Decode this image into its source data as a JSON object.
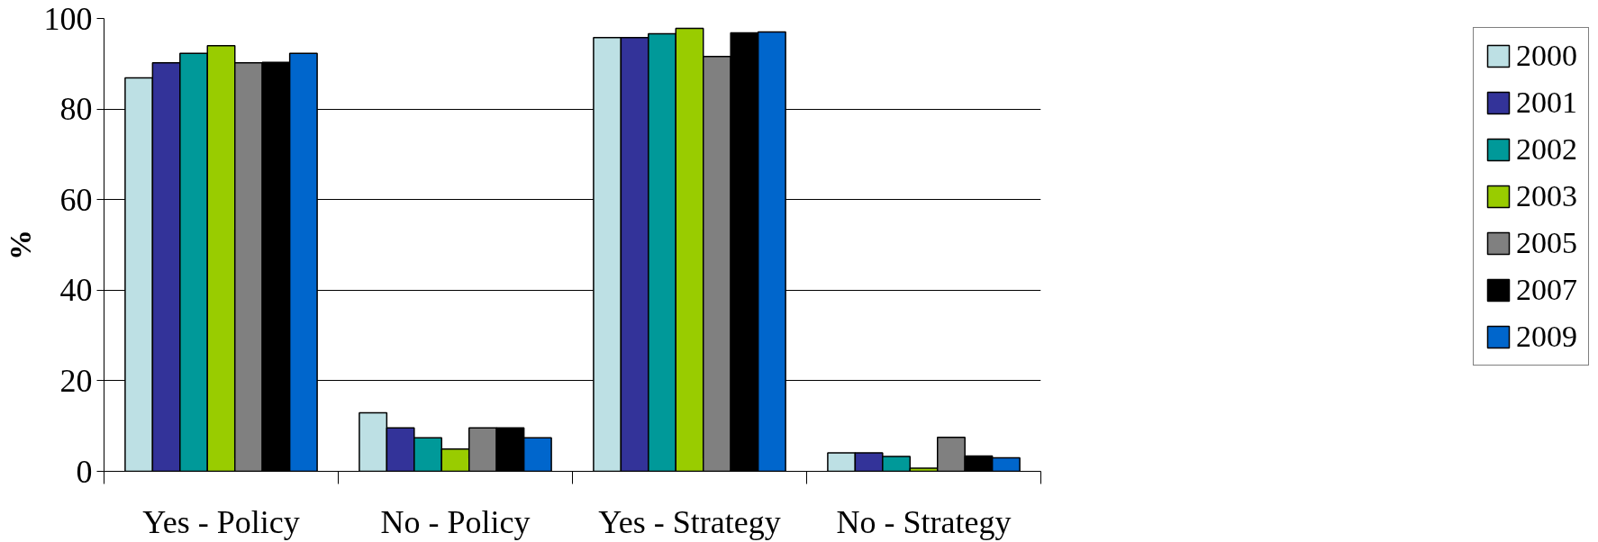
{
  "chart_data": {
    "type": "bar",
    "ylabel": "%",
    "categories": [
      "Yes - Policy",
      "No - Policy",
      "Yes - Strategy",
      "No - Strategy"
    ],
    "series": [
      {
        "name": "2000",
        "color": "#bde0e4",
        "values": [
          86.9,
          12.9,
          95.8,
          4.1
        ]
      },
      {
        "name": "2001",
        "color": "#333399",
        "values": [
          90.2,
          9.6,
          95.8,
          4.1
        ]
      },
      {
        "name": "2002",
        "color": "#009999",
        "values": [
          92.3,
          7.4,
          96.6,
          3.3
        ]
      },
      {
        "name": "2003",
        "color": "#99cc00",
        "values": [
          94.0,
          4.9,
          97.8,
          0.7
        ]
      },
      {
        "name": "2005",
        "color": "#808080",
        "values": [
          90.2,
          9.6,
          91.6,
          7.5
        ]
      },
      {
        "name": "2007",
        "color": "#000000",
        "values": [
          90.3,
          9.6,
          96.8,
          3.4
        ]
      },
      {
        "name": "2009",
        "color": "#0066cc",
        "values": [
          92.3,
          7.4,
          97.0,
          3.0
        ]
      }
    ],
    "ylim": [
      0,
      100
    ],
    "yticks": [
      0,
      20,
      40,
      60,
      80,
      100
    ],
    "grid": "y",
    "legend": "right"
  }
}
